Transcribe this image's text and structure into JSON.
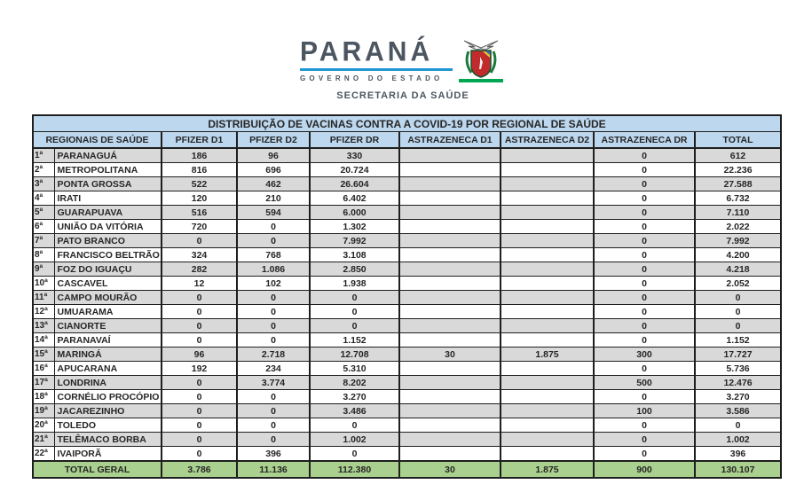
{
  "logo": {
    "brand": "PARANÁ",
    "government": "GOVERNO DO ESTADO",
    "secretary": "SECRETARIA DA SAÚDE"
  },
  "colors": {
    "header_bg": "#BDD7EE",
    "stripe_bg": "#D9D9D9",
    "total_bg": "#A9D08E",
    "border": "#1f1f1f",
    "brand_blue": "#1F97D4",
    "brand_green": "#00A651",
    "brand_text": "#4B5661"
  },
  "table": {
    "title": "DISTRIBUIÇÃO DE VACINAS CONTRA A COVID-19 POR REGIONAL DE SAÚDE",
    "columns": [
      "REGIONAIS DE SAÚDE",
      "PFIZER D1",
      "PFIZER D2",
      "PFIZER DR",
      "ASTRAZENECA D1",
      "ASTRAZENECA D2",
      "ASTRAZENECA DR",
      "TOTAL"
    ],
    "rows": [
      {
        "ordinal": "1ª",
        "name": "PARANAGUÁ",
        "values": [
          "186",
          "96",
          "330",
          "",
          "",
          "0",
          "612"
        ]
      },
      {
        "ordinal": "2ª",
        "name": "METROPOLITANA",
        "values": [
          "816",
          "696",
          "20.724",
          "",
          "",
          "0",
          "22.236"
        ]
      },
      {
        "ordinal": "3ª",
        "name": "PONTA GROSSA",
        "values": [
          "522",
          "462",
          "26.604",
          "",
          "",
          "0",
          "27.588"
        ]
      },
      {
        "ordinal": "4ª",
        "name": "IRATI",
        "values": [
          "120",
          "210",
          "6.402",
          "",
          "",
          "0",
          "6.732"
        ]
      },
      {
        "ordinal": "5ª",
        "name": "GUARAPUAVA",
        "values": [
          "516",
          "594",
          "6.000",
          "",
          "",
          "0",
          "7.110"
        ]
      },
      {
        "ordinal": "6ª",
        "name": "UNIÃO DA VITÓRIA",
        "values": [
          "720",
          "0",
          "1.302",
          "",
          "",
          "0",
          "2.022"
        ]
      },
      {
        "ordinal": "7ª",
        "name": "PATO BRANCO",
        "values": [
          "0",
          "0",
          "7.992",
          "",
          "",
          "0",
          "7.992"
        ]
      },
      {
        "ordinal": "8ª",
        "name": "FRANCISCO BELTRÃO",
        "values": [
          "324",
          "768",
          "3.108",
          "",
          "",
          "0",
          "4.200"
        ]
      },
      {
        "ordinal": "9ª",
        "name": "FOZ DO IGUAÇU",
        "values": [
          "282",
          "1.086",
          "2.850",
          "",
          "",
          "0",
          "4.218"
        ]
      },
      {
        "ordinal": "10ª",
        "name": "CASCAVEL",
        "values": [
          "12",
          "102",
          "1.938",
          "",
          "",
          "0",
          "2.052"
        ]
      },
      {
        "ordinal": "11ª",
        "name": "CAMPO MOURÃO",
        "values": [
          "0",
          "0",
          "0",
          "",
          "",
          "0",
          "0"
        ]
      },
      {
        "ordinal": "12ª",
        "name": "UMUARAMA",
        "values": [
          "0",
          "0",
          "0",
          "",
          "",
          "0",
          "0"
        ]
      },
      {
        "ordinal": "13ª",
        "name": "CIANORTE",
        "values": [
          "0",
          "0",
          "0",
          "",
          "",
          "0",
          "0"
        ]
      },
      {
        "ordinal": "14ª",
        "name": "PARANAVAÍ",
        "values": [
          "0",
          "0",
          "1.152",
          "",
          "",
          "0",
          "1.152"
        ]
      },
      {
        "ordinal": "15ª",
        "name": "MARINGÁ",
        "values": [
          "96",
          "2.718",
          "12.708",
          "30",
          "1.875",
          "300",
          "17.727"
        ]
      },
      {
        "ordinal": "16ª",
        "name": "APUCARANA",
        "values": [
          "192",
          "234",
          "5.310",
          "",
          "",
          "0",
          "5.736"
        ]
      },
      {
        "ordinal": "17ª",
        "name": "LONDRINA",
        "values": [
          "0",
          "3.774",
          "8.202",
          "",
          "",
          "500",
          "12.476"
        ]
      },
      {
        "ordinal": "18ª",
        "name": "CORNÉLIO PROCÓPIO",
        "values": [
          "0",
          "0",
          "3.270",
          "",
          "",
          "0",
          "3.270"
        ]
      },
      {
        "ordinal": "19ª",
        "name": "JACAREZINHO",
        "values": [
          "0",
          "0",
          "3.486",
          "",
          "",
          "100",
          "3.586"
        ]
      },
      {
        "ordinal": "20ª",
        "name": "TOLEDO",
        "values": [
          "0",
          "0",
          "0",
          "",
          "",
          "0",
          "0"
        ]
      },
      {
        "ordinal": "21ª",
        "name": "TELÊMACO BORBA",
        "values": [
          "0",
          "0",
          "1.002",
          "",
          "",
          "0",
          "1.002"
        ]
      },
      {
        "ordinal": "22ª",
        "name": "IVAIPORÃ",
        "values": [
          "0",
          "396",
          "0",
          "",
          "",
          "0",
          "396"
        ]
      }
    ],
    "total_row": {
      "label": "TOTAL GERAL",
      "values": [
        "3.786",
        "11.136",
        "112.380",
        "30",
        "1.875",
        "900",
        "130.107"
      ]
    }
  }
}
